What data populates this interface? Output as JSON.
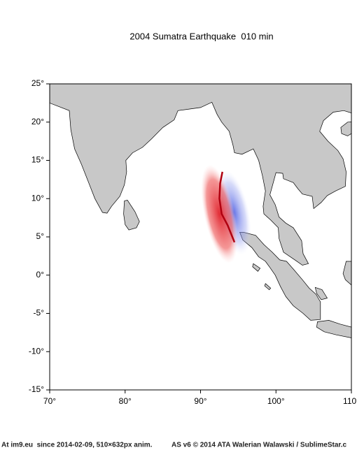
{
  "title": "2004 Sumatra Earthquake  010 min",
  "map": {
    "xlim": [
      70,
      110
    ],
    "ylim": [
      -15,
      25
    ],
    "xticks": [
      {
        "value": 70,
        "label": "70°"
      },
      {
        "value": 80,
        "label": "80°"
      },
      {
        "value": 90,
        "label": "90°"
      },
      {
        "value": 100,
        "label": "100°"
      },
      {
        "value": 110,
        "label": "110°"
      }
    ],
    "yticks": [
      {
        "value": 25,
        "label": "25°"
      },
      {
        "value": 20,
        "label": "20°"
      },
      {
        "value": 15,
        "label": "15°"
      },
      {
        "value": 10,
        "label": "10°"
      },
      {
        "value": 5,
        "label": "5°"
      },
      {
        "value": 0,
        "label": "0°"
      },
      {
        "value": -5,
        "label": "-5°"
      },
      {
        "value": -10,
        "label": "-10°"
      },
      {
        "value": -15,
        "label": "-15°"
      }
    ]
  },
  "footer": {
    "left": "At im9.eu  since 2014-02-09, 510×632px anim.",
    "right": "AS v6 © 2014 ATA Walerian Walawski / SublimeStar.c"
  }
}
